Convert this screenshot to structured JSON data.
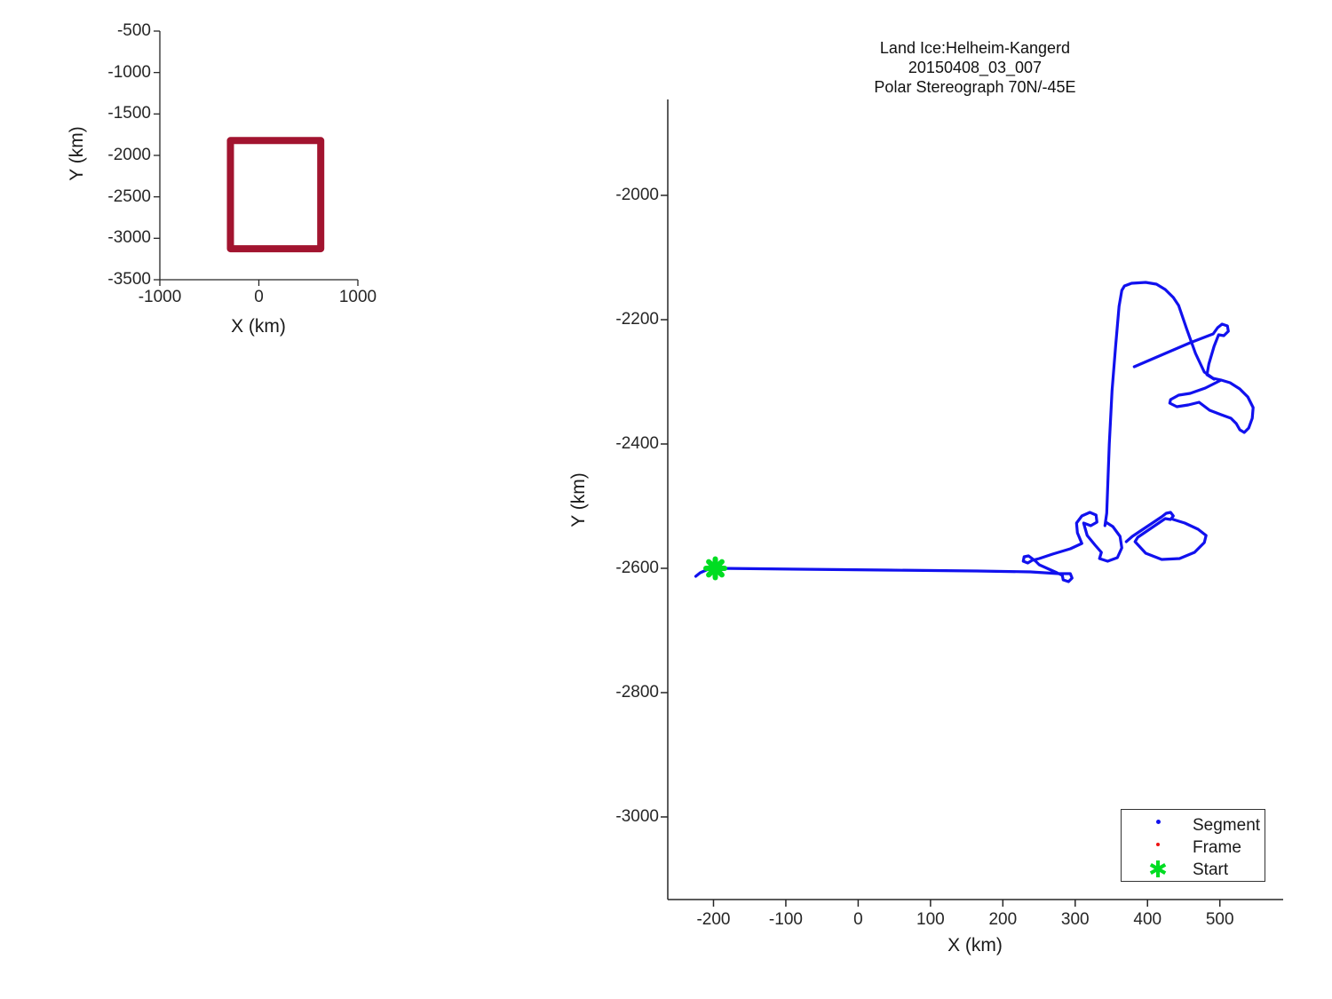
{
  "figure": {
    "background": "#ffffff"
  },
  "colors": {
    "track": "#1111ee",
    "frame": "#ee1111",
    "start": "#00dd22",
    "footprint": "#a2142f",
    "axis": "#262626",
    "text": "#1a1a1a"
  },
  "main_plot": {
    "title_lines": [
      "Land Ice:Helheim-Kangerd",
      "20150408_03_007",
      "Polar Stereograph 70N/-45E"
    ],
    "xlabel": "X (km)",
    "ylabel": "Y (km)",
    "legend": {
      "entries": [
        {
          "label": "Segment",
          "marker": "dot",
          "color": "#1111ee"
        },
        {
          "label": "Frame",
          "marker": "dot",
          "color": "#ee1111"
        },
        {
          "label": "Start",
          "marker": "asterisk",
          "color": "#00dd22"
        }
      ]
    }
  },
  "inset_plot": {
    "xlabel": "X (km)",
    "ylabel": "Y (km)"
  },
  "chart_data": [
    {
      "id": "overview",
      "type": "line",
      "xlabel": "X (km)",
      "ylabel": "Y (km)",
      "xlim": [
        -1000,
        1000
      ],
      "ylim": [
        -3500,
        -500
      ],
      "xticks": [
        -1000,
        0,
        1000
      ],
      "yticks": [
        -500,
        -1000,
        -1500,
        -2000,
        -2500,
        -3000,
        -3500
      ],
      "grid": false,
      "legend_position": "none",
      "series": [
        {
          "name": "footprint",
          "color": "#a2142f",
          "linewidth": 8,
          "closed": true,
          "points": [
            [
              -287,
              -1821
            ],
            [
              625,
              -1821
            ],
            [
              625,
              -3126
            ],
            [
              -287,
              -3126
            ]
          ]
        }
      ]
    },
    {
      "id": "track",
      "type": "line",
      "title": "Land Ice:Helheim-Kangerd 20150408_03_007 Polar Stereograph 70N/-45E",
      "xlabel": "X (km)",
      "ylabel": "Y (km)",
      "xlim": [
        -263.2,
        587.5
      ],
      "ylim": [
        -3132.9,
        -1845.7
      ],
      "xticks": [
        -200,
        -100,
        0,
        100,
        200,
        300,
        400,
        500
      ],
      "yticks": [
        -2000,
        -2200,
        -2400,
        -2600,
        -2800,
        -3000
      ],
      "grid": false,
      "legend_position": "lower right",
      "series": [
        {
          "name": "Segment",
          "color": "#1111ee",
          "linewidth": 3.2,
          "points": [
            [
              -224.5,
              -2612.9
            ],
            [
              -218.4,
              -2607.1
            ],
            [
              -207.4,
              -2601.4
            ],
            [
              -191.4,
              -2600.0
            ],
            [
              -81.0,
              -2601.4
            ],
            [
              41.7,
              -2602.9
            ],
            [
              164.4,
              -2604.3
            ],
            [
              238.0,
              -2605.7
            ],
            [
              277.3,
              -2608.6
            ],
            [
              293.3,
              -2608.6
            ],
            [
              295.7,
              -2615.7
            ],
            [
              290.8,
              -2621.4
            ],
            [
              283.4,
              -2618.6
            ],
            [
              282.2,
              -2611.4
            ],
            [
              274.8,
              -2607.1
            ],
            [
              250.3,
              -2594.3
            ],
            [
              245.4,
              -2588.6
            ],
            [
              240.5,
              -2584.3
            ],
            [
              235.6,
              -2580.0
            ],
            [
              229.4,
              -2581.4
            ],
            [
              228.2,
              -2588.6
            ],
            [
              234.4,
              -2591.4
            ],
            [
              240.5,
              -2587.1
            ],
            [
              250.3,
              -2584.3
            ],
            [
              268.7,
              -2577.1
            ],
            [
              293.3,
              -2568.6
            ],
            [
              309.2,
              -2560.0
            ],
            [
              303.1,
              -2542.9
            ],
            [
              301.8,
              -2527.1
            ],
            [
              309.2,
              -2515.7
            ],
            [
              320.2,
              -2510.0
            ],
            [
              328.8,
              -2514.3
            ],
            [
              330.1,
              -2525.7
            ],
            [
              321.5,
              -2531.4
            ],
            [
              311.7,
              -2527.1
            ],
            [
              316.6,
              -2547.1
            ],
            [
              327.6,
              -2562.9
            ],
            [
              336.2,
              -2574.3
            ],
            [
              333.7,
              -2584.3
            ],
            [
              344.8,
              -2588.6
            ],
            [
              358.3,
              -2582.9
            ],
            [
              364.4,
              -2567.1
            ],
            [
              362.0,
              -2548.6
            ],
            [
              352.1,
              -2532.9
            ],
            [
              342.3,
              -2525.7
            ],
            [
              341.1,
              -2531.4
            ],
            [
              343.6,
              -2511.4
            ],
            [
              347.2,
              -2400.0
            ],
            [
              350.9,
              -2314.3
            ],
            [
              355.8,
              -2242.9
            ],
            [
              360.7,
              -2178.6
            ],
            [
              364.4,
              -2152.9
            ],
            [
              368.1,
              -2145.7
            ],
            [
              377.9,
              -2141.4
            ],
            [
              397.5,
              -2140.0
            ],
            [
              412.3,
              -2142.9
            ],
            [
              424.5,
              -2151.4
            ],
            [
              435.6,
              -2164.3
            ],
            [
              443.0,
              -2177.1
            ],
            [
              454.0,
              -2214.3
            ],
            [
              466.3,
              -2254.3
            ],
            [
              478.5,
              -2284.3
            ],
            [
              490.8,
              -2294.3
            ],
            [
              501.8,
              -2297.1
            ],
            [
              479.8,
              -2310.0
            ],
            [
              458.9,
              -2318.6
            ],
            [
              443.0,
              -2321.4
            ],
            [
              431.9,
              -2328.6
            ],
            [
              430.7,
              -2334.3
            ],
            [
              440.5,
              -2340.0
            ],
            [
              456.4,
              -2337.1
            ],
            [
              471.2,
              -2332.9
            ],
            [
              485.9,
              -2345.7
            ],
            [
              501.8,
              -2352.9
            ],
            [
              515.3,
              -2358.6
            ],
            [
              522.7,
              -2367.1
            ],
            [
              527.6,
              -2377.1
            ],
            [
              533.7,
              -2381.4
            ],
            [
              539.9,
              -2374.3
            ],
            [
              544.8,
              -2358.6
            ],
            [
              546.0,
              -2341.4
            ],
            [
              538.7,
              -2324.3
            ],
            [
              527.6,
              -2311.4
            ],
            [
              514.1,
              -2301.4
            ],
            [
              501.8,
              -2297.1
            ]
          ]
        },
        {
          "name": "Segment",
          "color": "#1111ee",
          "linewidth": 3.2,
          "points": [
            [
              381.6,
              -2275.7
            ],
            [
              415.9,
              -2258.6
            ],
            [
              458.9,
              -2237.1
            ],
            [
              490.8,
              -2222.9
            ],
            [
              496.9,
              -2212.9
            ],
            [
              503.1,
              -2207.1
            ],
            [
              510.4,
              -2210.0
            ],
            [
              511.7,
              -2218.6
            ],
            [
              505.5,
              -2225.7
            ],
            [
              498.2,
              -2224.3
            ],
            [
              492.0,
              -2242.9
            ],
            [
              484.7,
              -2271.4
            ],
            [
              482.2,
              -2288.6
            ],
            [
              492.0,
              -2295.7
            ]
          ]
        },
        {
          "name": "Segment",
          "color": "#1111ee",
          "linewidth": 3.2,
          "points": [
            [
              370.6,
              -2557.1
            ],
            [
              379.1,
              -2548.6
            ],
            [
              419.6,
              -2517.1
            ],
            [
              425.8,
              -2511.4
            ],
            [
              431.9,
              -2510.0
            ],
            [
              435.6,
              -2515.7
            ],
            [
              431.9,
              -2521.4
            ],
            [
              424.5,
              -2520.0
            ],
            [
              417.2,
              -2525.7
            ],
            [
              386.5,
              -2550.0
            ],
            [
              382.8,
              -2557.1
            ],
            [
              397.5,
              -2575.7
            ],
            [
              419.6,
              -2585.7
            ],
            [
              444.2,
              -2584.3
            ],
            [
              465.0,
              -2574.3
            ],
            [
              478.5,
              -2558.6
            ],
            [
              481.0,
              -2547.1
            ],
            [
              469.9,
              -2537.1
            ],
            [
              451.5,
              -2527.1
            ],
            [
              435.6,
              -2521.4
            ]
          ]
        }
      ],
      "markers": [
        {
          "name": "Start",
          "x": -197.5,
          "y": -2600,
          "color": "#00dd22"
        }
      ]
    }
  ]
}
